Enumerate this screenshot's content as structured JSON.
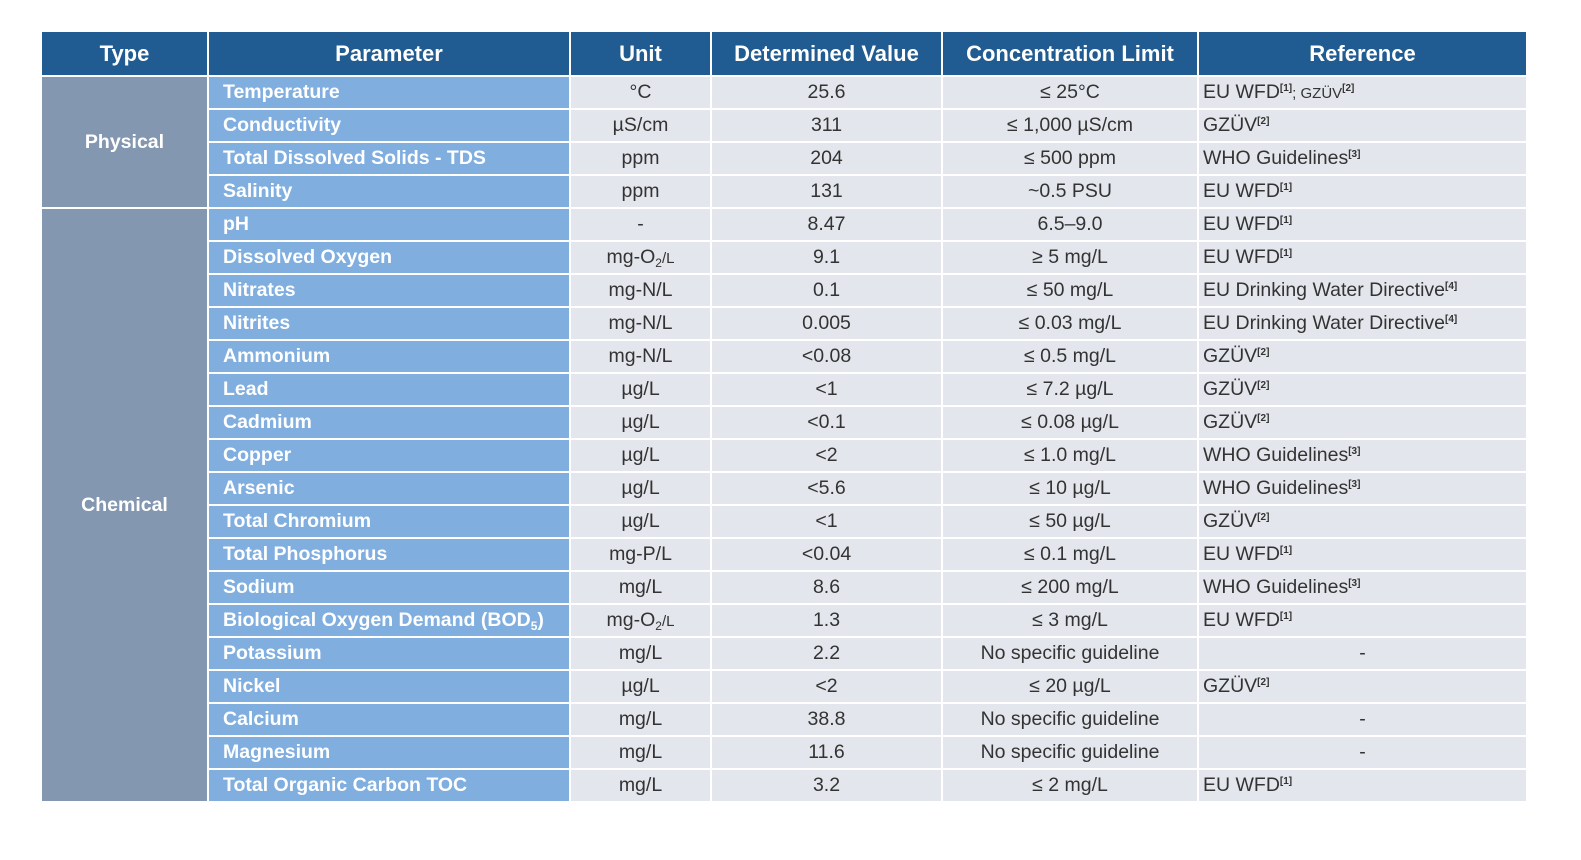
{
  "headers": [
    "Type",
    "Parameter",
    "Unit",
    "Determined Value",
    "Concentration Limit",
    "Reference"
  ],
  "groups": [
    {
      "type": "Physical",
      "rows": [
        {
          "param": "Temperature",
          "unit": "°C",
          "value": "25.6",
          "limit": "≤ 25°C",
          "ref": [
            {
              "text": "EU WFD"
            },
            {
              "sup": "[1]"
            },
            {
              "text": "; ",
              "small": true
            },
            {
              "text": "GZÜV",
              "small": true
            },
            {
              "sup": "[2]"
            }
          ]
        },
        {
          "param": "Conductivity",
          "unit": "µS/cm",
          "value": "311",
          "limit": "≤ 1,000 µS/cm",
          "ref": [
            {
              "text": "GZÜV"
            },
            {
              "sup": "[2]"
            }
          ]
        },
        {
          "param": "Total Dissolved Solids - TDS",
          "unit": "ppm",
          "value": "204",
          "limit": "≤ 500 ppm",
          "ref": [
            {
              "text": "WHO Guidelines"
            },
            {
              "sup": "[3]"
            }
          ]
        },
        {
          "param": "Salinity",
          "unit": "ppm",
          "value": "131",
          "limit": "~0.5 PSU",
          "ref": [
            {
              "text": "EU WFD"
            },
            {
              "sup": "[1]"
            }
          ]
        }
      ]
    },
    {
      "type": "Chemical",
      "rows": [
        {
          "param": "pH",
          "unit": "-",
          "value": "8.47",
          "limit": "6.5–9.0",
          "ref": [
            {
              "text": "EU WFD"
            },
            {
              "sup": "[1]"
            }
          ]
        },
        {
          "param": "Dissolved Oxygen",
          "unit": [
            {
              "text": "mg-O"
            },
            {
              "sub": "2"
            },
            {
              "text": "/L",
              "small": true
            }
          ],
          "value": "9.1",
          "limit": "≥ 5 mg/L",
          "ref": [
            {
              "text": "EU WFD"
            },
            {
              "sup": "[1]"
            }
          ]
        },
        {
          "param": "Nitrates",
          "unit": "mg-N/L",
          "value": "0.1",
          "limit": "≤ 50 mg/L",
          "ref": [
            {
              "text": "EU Drinking Water Directive"
            },
            {
              "sup": "[4]"
            }
          ]
        },
        {
          "param": "Nitrites",
          "unit": "mg-N/L",
          "value": "0.005",
          "limit": "≤ 0.03 mg/L",
          "ref": [
            {
              "text": "EU Drinking Water Directive"
            },
            {
              "sup": "[4]"
            }
          ]
        },
        {
          "param": "Ammonium",
          "unit": "mg-N/L",
          "value": "<0.08",
          "limit": "≤ 0.5 mg/L",
          "ref": [
            {
              "text": "GZÜV"
            },
            {
              "sup": "[2]"
            }
          ]
        },
        {
          "param": "Lead",
          "unit": "µg/L",
          "value": "<1",
          "limit": "≤ 7.2 µg/L",
          "ref": [
            {
              "text": "GZÜV"
            },
            {
              "sup": "[2]"
            }
          ]
        },
        {
          "param": "Cadmium",
          "unit": "µg/L",
          "value": "<0.1",
          "limit": "≤ 0.08 µg/L",
          "ref": [
            {
              "text": "GZÜV"
            },
            {
              "sup": "[2]"
            }
          ]
        },
        {
          "param": "Copper",
          "unit": "µg/L",
          "value": "<2",
          "limit": "≤ 1.0 mg/L",
          "ref": [
            {
              "text": "WHO Guidelines"
            },
            {
              "sup": "[3]"
            }
          ]
        },
        {
          "param": "Arsenic",
          "unit": "µg/L",
          "value": "<5.6",
          "limit": "≤ 10 µg/L",
          "ref": [
            {
              "text": "WHO Guidelines"
            },
            {
              "sup": "[3]"
            }
          ]
        },
        {
          "param": "Total Chromium",
          "unit": "µg/L",
          "value": "<1",
          "limit": "≤ 50 µg/L",
          "ref": [
            {
              "text": "GZÜV"
            },
            {
              "sup": "[2]"
            }
          ]
        },
        {
          "param": "Total Phosphorus",
          "unit": "mg-P/L",
          "value": "<0.04",
          "limit": "≤ 0.1 mg/L",
          "ref": [
            {
              "text": "EU WFD"
            },
            {
              "sup": "[1]"
            }
          ]
        },
        {
          "param": "Sodium",
          "unit": "mg/L",
          "value": "8.6",
          "limit": "≤ 200 mg/L",
          "ref": [
            {
              "text": "WHO Guidelines"
            },
            {
              "sup": "[3]"
            }
          ]
        },
        {
          "param": [
            {
              "text": "Biological Oxygen Demand (BOD"
            },
            {
              "sub": "5"
            },
            {
              "text": ")"
            }
          ],
          "unit": [
            {
              "text": "mg-O"
            },
            {
              "sub": "2"
            },
            {
              "text": "/L",
              "small": true
            }
          ],
          "value": "1.3",
          "limit": "≤ 3 mg/L",
          "ref": [
            {
              "text": "EU WFD"
            },
            {
              "sup": "[1]"
            }
          ]
        },
        {
          "param": "Potassium",
          "unit": "mg/L",
          "value": "2.2",
          "limit": "No specific guideline",
          "ref": "-"
        },
        {
          "param": "Nickel",
          "unit": "µg/L",
          "value": "<2",
          "limit": "≤ 20 µg/L",
          "ref": [
            {
              "text": "GZÜV"
            },
            {
              "sup": "[2]"
            }
          ]
        },
        {
          "param": "Calcium",
          "unit": "mg/L",
          "value": "38.8",
          "limit": "No specific guideline",
          "ref": "-"
        },
        {
          "param": "Magnesium",
          "unit": "mg/L",
          "value": "11.6",
          "limit": "No specific guideline",
          "ref": "-"
        },
        {
          "param": "Total Organic Carbon TOC",
          "unit": "mg/L",
          "value": "3.2",
          "limit": "≤ 2 mg/L",
          "ref": [
            {
              "text": "EU WFD"
            },
            {
              "sup": "[1]"
            }
          ]
        }
      ]
    }
  ]
}
